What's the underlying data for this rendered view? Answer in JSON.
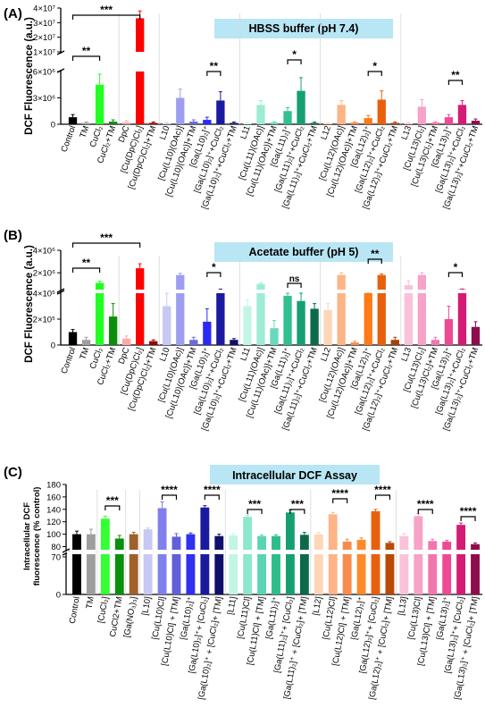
{
  "panels": [
    {
      "letter": "(A)",
      "title": "HBSS buffer (pH 7.4)",
      "ylabel": "DCF Fluorescence (a.u.)",
      "axis_type": "broken",
      "lower": {
        "range": [
          0,
          6000000
        ],
        "ticks": [
          0,
          3000000,
          6000000
        ],
        "tick_labels": [
          "0",
          "3×10⁶",
          "6×10⁶"
        ]
      },
      "upper": {
        "range": [
          10000000,
          40000000
        ],
        "ticks": [
          10000000,
          20000000,
          30000000,
          40000000
        ],
        "tick_labels": [
          "1×10⁷",
          "2×10⁷",
          "3×10⁷",
          "4×10⁷"
        ]
      },
      "chart_data": {
        "type": "bar",
        "categories": [
          "Control",
          "TM",
          "CuCl₂",
          "CuCl₂+TM",
          "DpC",
          "[Cu(DpC)Cl₂]",
          "[Cu(DpC)Cl₂]+TM",
          "L10",
          "[Cu(L10)(OAc)]",
          "[Cu(L10)(OAc)]+TM",
          "[Ga(L10)₂]⁺",
          "[Ga(L10)₂]⁺+CuCl₂",
          "[Ga(L10)₂]⁺+CuCl₂+TM",
          "L11",
          "[Cu(L11)(OAc)]",
          "[Cu(L11)(OAc)]+TM",
          "[Ga(L11)₂]⁺",
          "[Ga(L11)₂]⁺+CuCl₂",
          "[Ga(L11)₂]⁺+CuCl₂+TM",
          "L12",
          "[Cu(L12)(OAc)]",
          "[Cu(L12)(OAc)]+TM",
          "[Ga(L12)₂]⁺",
          "[Ga(L12)₂]⁺+CuCl₂",
          "[Ga(L12)₂]⁺+CuCl₂+TM",
          "L13",
          "[Cu(L13)Cl₂]",
          "[Cu(L13)Cl₂]+TM",
          "[Ga(L13)₂]⁺",
          "[Ga(L13)₂]⁺+CuCl₂",
          "[Ga(L13)₂]⁺+CuCl₂+TM"
        ],
        "values": [
          800000,
          150000,
          4500000,
          300000,
          200000,
          33000000,
          150000,
          100000,
          3000000,
          300000,
          500000,
          2700000,
          150000,
          100000,
          2200000,
          200000,
          1500000,
          3800000,
          150000,
          100000,
          2200000,
          200000,
          700000,
          2800000,
          150000,
          100000,
          2000000,
          200000,
          800000,
          2200000,
          400000
        ],
        "errors": [
          300000,
          100000,
          1200000,
          200000,
          200000,
          5000000,
          100000,
          100000,
          1000000,
          200000,
          300000,
          1000000,
          100000,
          100000,
          500000,
          100000,
          400000,
          1500000,
          100000,
          100000,
          500000,
          100000,
          300000,
          1000000,
          100000,
          100000,
          800000,
          100000,
          300000,
          500000,
          200000
        ],
        "colors": [
          "#000000",
          "#9e9e9e",
          "#22ff22",
          "#0c8f0c",
          "#ffaaaa",
          "#ff0000",
          "#990000",
          "#c8c8f4",
          "#9e9ef0",
          "#6a6ae0",
          "#2a2af8",
          "#1a1aa0",
          "#10106a",
          "#c2f5e6",
          "#9eecd6",
          "#6ad8bc",
          "#32c090",
          "#16a070",
          "#0c6a4a",
          "#fdd6b8",
          "#fdb486",
          "#f88c4c",
          "#ff7a18",
          "#e8600c",
          "#a84006",
          "#fac2da",
          "#f7a2c8",
          "#f276ae",
          "#ee4a94",
          "#d41c76",
          "#8e0c4c"
        ],
        "ylabel": "DCF Fluorescence (a.u.)"
      },
      "sig": [
        "**",
        "***",
        "**",
        "*",
        "*",
        "**"
      ]
    },
    {
      "letter": "(B)",
      "title": "Acetate buffer (pH 5)",
      "ylabel": "DCF Fluorescence (a.u.)",
      "axis_type": "broken",
      "lower": {
        "range": [
          0,
          400000
        ],
        "ticks": [
          0,
          200000,
          400000
        ],
        "tick_labels": [
          "0",
          "2×10⁵",
          "4×10⁵"
        ]
      },
      "upper": {
        "range": [
          500000,
          4000000
        ],
        "ticks": [
          2000000,
          4000000
        ],
        "tick_labels": [
          "2×10⁶",
          "4×10⁶"
        ]
      },
      "chart_data": {
        "type": "bar",
        "categories": [
          "Control",
          "TM",
          "CuCl₂",
          "CuCl₂+TM",
          "DpC",
          "[Cu(DpC)Cl₂]",
          "[Cu(DpC)Cl₂]+TM",
          "L10",
          "[Cu(L10)(OAc)]",
          "[Cu(L10)(OAc)]+TM",
          "[Ga(L10)₂]⁺",
          "[Ga(L10)₂]⁺+CuCl₂",
          "[Ga(L10)₂]⁺+CuCl₂+TM",
          "L11",
          "[Cu(L11)(OAc)]",
          "[Cu(L11)(OAc)]+TM",
          "[Ga(L11)₂]⁺",
          "[Ga(L11)₂]⁺+CuCl₂",
          "[Ga(L11)₂]⁺+CuCl₂+TM",
          "L12",
          "[Cu(L12)(OAc)]",
          "[Cu(L12)(OAc)]+TM",
          "[Ga(L12)₂]⁺",
          "[Ga(L12)₂]⁺+CuCl₂",
          "[Ga(L12)₂]⁺+CuCl₂+TM",
          "L13",
          "[Cu(L13)Cl₂]",
          "[Cu(L13)Cl₂]+TM",
          "[Ga(L13)₂]⁺",
          "[Ga(L13)₂]⁺+CuCl₂",
          "[Ga(L13)₂]⁺+CuCl₂+TM"
        ],
        "values": [
          100000,
          40000,
          1100000,
          220000,
          50000,
          2400000,
          30000,
          300000,
          1800000,
          40000,
          180000,
          500000,
          40000,
          300000,
          1000000,
          130000,
          380000,
          340000,
          280000,
          270000,
          1800000,
          20000,
          430000,
          1800000,
          40000,
          900000,
          1800000,
          40000,
          200000,
          530000,
          140000
        ],
        "errors": [
          20000,
          20000,
          150000,
          100000,
          20000,
          400000,
          10000,
          100000,
          150000,
          20000,
          100000,
          50000,
          10000,
          50000,
          100000,
          60000,
          80000,
          60000,
          40000,
          50000,
          200000,
          10000,
          60000,
          100000,
          20000,
          400000,
          200000,
          20000,
          100000,
          30000,
          40000
        ],
        "colors": [
          "#000000",
          "#9e9e9e",
          "#22ff22",
          "#0c8f0c",
          "#ffaaaa",
          "#ff0000",
          "#990000",
          "#c8c8f4",
          "#9e9ef0",
          "#6a6ae0",
          "#2a2af8",
          "#1a1aa0",
          "#10106a",
          "#c2f5e6",
          "#9eecd6",
          "#6ad8bc",
          "#32c090",
          "#16a070",
          "#0c6a4a",
          "#fdd6b8",
          "#fdb486",
          "#f88c4c",
          "#ff7a18",
          "#e8600c",
          "#a84006",
          "#fac2da",
          "#f7a2c8",
          "#f276ae",
          "#ee4a94",
          "#d41c76",
          "#8e0c4c"
        ],
        "ylabel": "DCF Fluorescence (a.u.)"
      },
      "sig": [
        "**",
        "***",
        "*",
        "ns",
        "**",
        "*"
      ]
    },
    {
      "letter": "(C)",
      "title": "Intracellular DCF Assay",
      "ylabel": "Intracellular DCF\nfluorescence (% control)",
      "axis_type": "broken",
      "lower": {
        "range": [
          0,
          75
        ],
        "ticks": [
          0,
          70
        ],
        "tick_labels": [
          "0",
          "70"
        ]
      },
      "upper": {
        "range": [
          75,
          180
        ],
        "ticks": [
          80,
          100,
          120,
          140,
          160,
          180
        ],
        "tick_labels": [
          "80",
          "100",
          "120",
          "140",
          "160",
          "180"
        ]
      },
      "chart_data": {
        "type": "bar",
        "categories": [
          "Control",
          "TM",
          "[CuCl₂]",
          "CuCl2+TM",
          "[Ga(NO₃)₃]",
          "[L10]",
          "[Cu(L10)Cl]",
          "[Cu(L10)Cl] + [TM]",
          "[Ga(L10)₂]⁺",
          "[Ga(L10)₂]⁺+ [CuCl₂]",
          "[Ga(L10)₂]⁺ + [CuCl₂]+ [TM]",
          "[L11]",
          "[Cu(L11)Cl]",
          "[Cu(L11)Cl] + [TM]",
          "[Ga(L11)₂]⁺",
          "[Ga(L11)₂]⁺+ [CuCl₂]",
          "[Ga(L11)₂]⁺ + [CuCl₂]+ [TM]",
          "[L12]",
          "[Cu(L12)Cl]",
          "[Cu(L12)Cl] + [TM]",
          "[Ga(L12)₂]⁺",
          "[Ga(L12)₂]⁺+ [CuCl₂]",
          "[Ga(L12)₂]⁺ + [CuCl₂]+ [TM]",
          "[L13]",
          "[Cu(L13)Cl]",
          "[Cu(L13)Cl] + [TM]",
          "[Ga(L13)₂]⁺",
          "[Ga(L13)₂]⁺+ [CuCl₂]",
          "[Ga(L13)₂]⁺ + [CuCl₂]+ [TM]"
        ],
        "values": [
          100,
          100,
          125,
          93,
          100,
          108,
          142,
          96,
          100,
          143,
          97,
          98,
          128,
          97,
          97,
          135,
          99,
          100,
          132,
          88,
          91,
          137,
          86,
          97,
          129,
          89,
          88,
          115,
          84
        ],
        "errors": [
          5,
          8,
          4,
          5,
          3,
          2,
          10,
          5,
          2,
          3,
          3,
          3,
          3,
          2,
          2,
          4,
          4,
          3,
          3,
          4,
          3,
          3,
          2,
          4,
          4,
          3,
          2,
          3,
          2
        ],
        "colors": [
          "#000000",
          "#9e9e9e",
          "#33ff33",
          "#0c8f0c",
          "#a0602a",
          "#c8c8f4",
          "#8080ec",
          "#6060d8",
          "#3030f0",
          "#1a1aa0",
          "#10106a",
          "#c2f5e6",
          "#8ce8cc",
          "#5ad4b2",
          "#2ebc8a",
          "#16a070",
          "#0c6a4a",
          "#fdd6b8",
          "#fdb486",
          "#f88c4c",
          "#ff8a2a",
          "#e8600c",
          "#b84a06",
          "#fac2da",
          "#f7a2c8",
          "#f276ae",
          "#ee4a94",
          "#d41c76",
          "#8e0c4c"
        ],
        "ylabel": "Intracellular DCF fluorescence (% control)"
      },
      "sig": [
        "***",
        "****",
        "****",
        "***",
        "***",
        "****",
        "****",
        "****",
        "****"
      ]
    }
  ],
  "colors": {
    "title_box": "#b8e6f4"
  }
}
